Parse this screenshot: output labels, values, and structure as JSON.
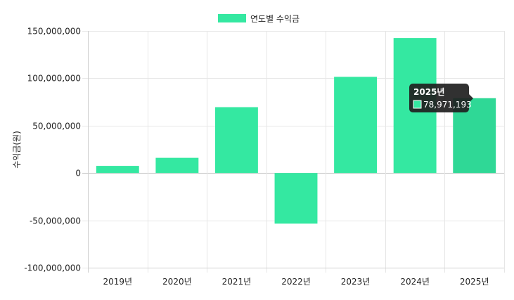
{
  "chart_data": {
    "type": "bar",
    "categories": [
      "2019년",
      "2020년",
      "2021년",
      "2022년",
      "2023년",
      "2024년",
      "2025년"
    ],
    "series": [
      {
        "name": "연도별 수익금",
        "values": [
          7500000,
          16000000,
          69500000,
          -53500000,
          101500000,
          142500000,
          78971193
        ]
      }
    ],
    "ylabel": "수익금(원)",
    "xlabel": "",
    "ylim": [
      -100000000,
      150000000
    ],
    "yticks": [
      150000000,
      100000000,
      50000000,
      0,
      -50000000,
      -100000000
    ],
    "ytick_labels": [
      "150,000,000",
      "100,000,000",
      "50,000,000",
      "0",
      "-50,000,000",
      "-100,000,000"
    ],
    "grid": true,
    "legend_position": "top-center",
    "colors": {
      "bar": "#34e8a1",
      "bar_highlight": "#2fd896",
      "tooltip_bg": "#1f1f1f"
    },
    "tooltip": {
      "title": "2025년",
      "value": "78,971,193",
      "category_index": 6
    }
  }
}
